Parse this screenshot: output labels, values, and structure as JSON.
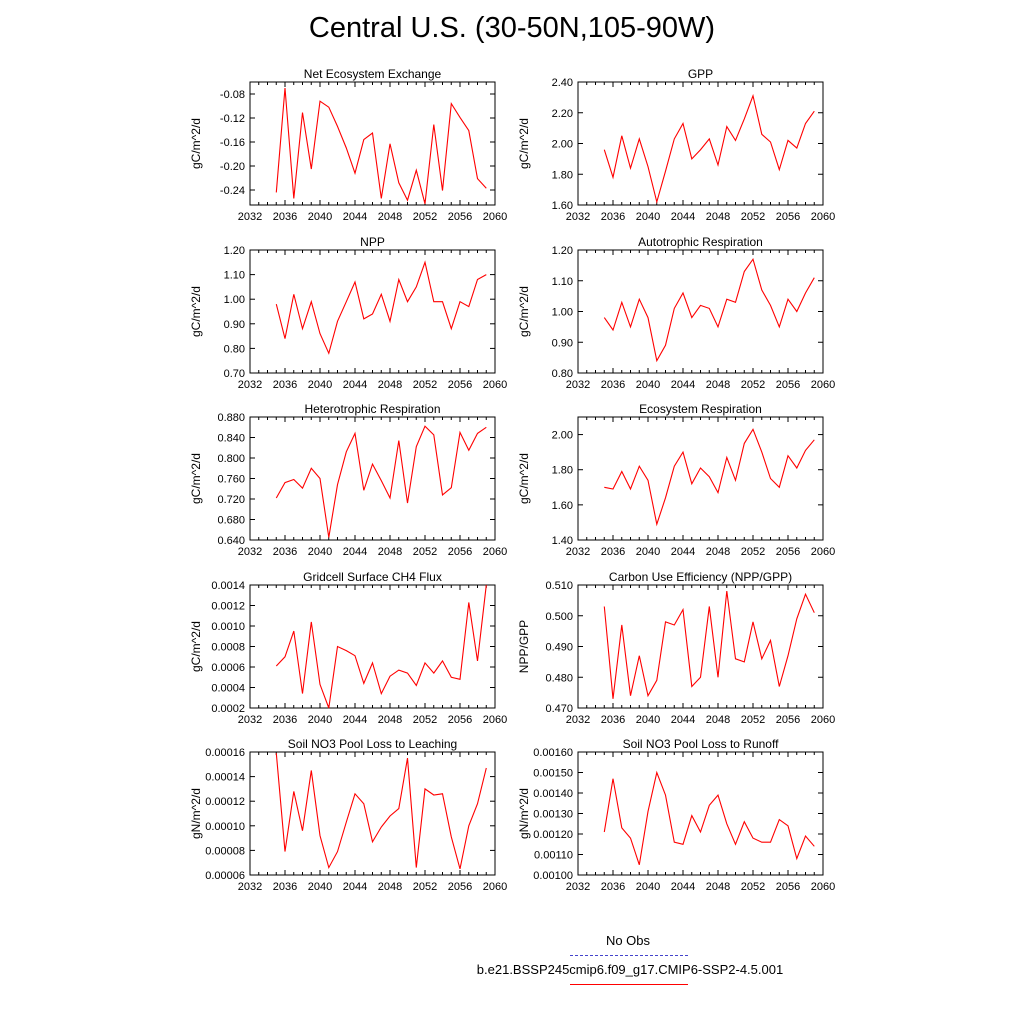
{
  "figure": {
    "title": "Central U.S. (30-50N,105-90W)",
    "obs_color": "#4444cc",
    "model_color": "#ff0000"
  },
  "legend": {
    "obs_label": "No Obs",
    "model_label": "b.e21.BSSP245cmip6.f09_g17.CMIP6-SSP2-4.5.001"
  },
  "chart_data": [
    {
      "type": "line",
      "title": "Net Ecosystem Exchange",
      "ylabel": "gC/m^2/d",
      "xlim": [
        2032,
        2060
      ],
      "xticks": [
        "2032",
        "2036",
        "2040",
        "2044",
        "2048",
        "2052",
        "2056",
        "2060"
      ],
      "ylim": [
        -0.265,
        -0.06
      ],
      "yticks": [
        "-0.08",
        "-0.12",
        "-0.16",
        "-0.20",
        "-0.24"
      ],
      "ytick_values": [
        -0.08,
        -0.12,
        -0.16,
        -0.2,
        -0.24
      ],
      "x": [
        2035,
        2036,
        2037,
        2038,
        2039,
        2040,
        2041,
        2042,
        2043,
        2044,
        2045,
        2046,
        2047,
        2048,
        2049,
        2050,
        2051,
        2052,
        2053,
        2054,
        2055,
        2056,
        2057,
        2058,
        2059
      ],
      "series": [
        {
          "values": [
            -0.244,
            -0.07,
            -0.254,
            -0.111,
            -0.205,
            -0.092,
            -0.102,
            -0.134,
            -0.17,
            -0.212,
            -0.156,
            -0.145,
            -0.254,
            -0.163,
            -0.228,
            -0.257,
            -0.207,
            -0.263,
            -0.131,
            -0.241,
            -0.096,
            -0.119,
            -0.141,
            -0.221,
            -0.237
          ]
        }
      ]
    },
    {
      "type": "line",
      "title": "GPP",
      "ylabel": "gC/m^2/d",
      "xlim": [
        2032,
        2060
      ],
      "xticks": [
        "2032",
        "2036",
        "2040",
        "2044",
        "2048",
        "2052",
        "2056",
        "2060"
      ],
      "ylim": [
        1.6,
        2.4
      ],
      "yticks": [
        "1.60",
        "1.80",
        "2.00",
        "2.20",
        "2.40"
      ],
      "ytick_values": [
        1.6,
        1.8,
        2.0,
        2.2,
        2.4
      ],
      "x": [
        2035,
        2036,
        2037,
        2038,
        2039,
        2040,
        2041,
        2042,
        2043,
        2044,
        2045,
        2046,
        2047,
        2048,
        2049,
        2050,
        2051,
        2052,
        2053,
        2054,
        2055,
        2056,
        2057,
        2058,
        2059
      ],
      "series": [
        {
          "values": [
            1.96,
            1.78,
            2.05,
            1.84,
            2.03,
            1.85,
            1.62,
            1.82,
            2.03,
            2.13,
            1.9,
            1.96,
            2.03,
            1.86,
            2.11,
            2.02,
            2.16,
            2.31,
            2.06,
            2.01,
            1.83,
            2.02,
            1.97,
            2.13,
            2.21
          ]
        }
      ]
    },
    {
      "type": "line",
      "title": "NPP",
      "ylabel": "gC/m^2/d",
      "xlim": [
        2032,
        2060
      ],
      "xticks": [
        "2032",
        "2036",
        "2040",
        "2044",
        "2048",
        "2052",
        "2056",
        "2060"
      ],
      "ylim": [
        0.7,
        1.2
      ],
      "yticks": [
        "0.70",
        "0.80",
        "0.90",
        "1.00",
        "1.10",
        "1.20"
      ],
      "ytick_values": [
        0.7,
        0.8,
        0.9,
        1.0,
        1.1,
        1.2
      ],
      "x": [
        2035,
        2036,
        2037,
        2038,
        2039,
        2040,
        2041,
        2042,
        2043,
        2044,
        2045,
        2046,
        2047,
        2048,
        2049,
        2050,
        2051,
        2052,
        2053,
        2054,
        2055,
        2056,
        2057,
        2058,
        2059
      ],
      "series": [
        {
          "values": [
            0.98,
            0.84,
            1.02,
            0.88,
            0.99,
            0.86,
            0.78,
            0.91,
            0.99,
            1.07,
            0.92,
            0.94,
            1.02,
            0.91,
            1.08,
            0.99,
            1.05,
            1.15,
            0.99,
            0.99,
            0.88,
            0.99,
            0.97,
            1.08,
            1.1
          ]
        }
      ]
    },
    {
      "type": "line",
      "title": "Autotrophic Respiration",
      "ylabel": "gC/m^2/d",
      "xlim": [
        2032,
        2060
      ],
      "xticks": [
        "2032",
        "2036",
        "2040",
        "2044",
        "2048",
        "2052",
        "2056",
        "2060"
      ],
      "ylim": [
        0.8,
        1.2
      ],
      "yticks": [
        "0.80",
        "0.90",
        "1.00",
        "1.10",
        "1.20"
      ],
      "ytick_values": [
        0.8,
        0.9,
        1.0,
        1.1,
        1.2
      ],
      "x": [
        2035,
        2036,
        2037,
        2038,
        2039,
        2040,
        2041,
        2042,
        2043,
        2044,
        2045,
        2046,
        2047,
        2048,
        2049,
        2050,
        2051,
        2052,
        2053,
        2054,
        2055,
        2056,
        2057,
        2058,
        2059
      ],
      "series": [
        {
          "values": [
            0.98,
            0.94,
            1.03,
            0.95,
            1.04,
            0.98,
            0.84,
            0.89,
            1.01,
            1.06,
            0.98,
            1.02,
            1.01,
            0.95,
            1.04,
            1.03,
            1.13,
            1.17,
            1.07,
            1.02,
            0.95,
            1.04,
            1.0,
            1.06,
            1.11
          ]
        }
      ]
    },
    {
      "type": "line",
      "title": "Heterotrophic Respiration",
      "ylabel": "gC/m^2/d",
      "xlim": [
        2032,
        2060
      ],
      "xticks": [
        "2032",
        "2036",
        "2040",
        "2044",
        "2048",
        "2052",
        "2056",
        "2060"
      ],
      "ylim": [
        0.64,
        0.88
      ],
      "yticks": [
        "0.640",
        "0.680",
        "0.720",
        "0.760",
        "0.800",
        "0.840",
        "0.880"
      ],
      "ytick_values": [
        0.64,
        0.68,
        0.72,
        0.76,
        0.8,
        0.84,
        0.88
      ],
      "x": [
        2035,
        2036,
        2037,
        2038,
        2039,
        2040,
        2041,
        2042,
        2043,
        2044,
        2045,
        2046,
        2047,
        2048,
        2049,
        2050,
        2051,
        2052,
        2053,
        2054,
        2055,
        2056,
        2057,
        2058,
        2059
      ],
      "series": [
        {
          "values": [
            0.722,
            0.752,
            0.758,
            0.741,
            0.78,
            0.76,
            0.645,
            0.748,
            0.812,
            0.848,
            0.737,
            0.788,
            0.756,
            0.722,
            0.834,
            0.712,
            0.822,
            0.862,
            0.845,
            0.728,
            0.742,
            0.85,
            0.815,
            0.848,
            0.86
          ]
        }
      ]
    },
    {
      "type": "line",
      "title": "Ecosystem Respiration",
      "ylabel": "gC/m^2/d",
      "xlim": [
        2032,
        2060
      ],
      "xticks": [
        "2032",
        "2036",
        "2040",
        "2044",
        "2048",
        "2052",
        "2056",
        "2060"
      ],
      "ylim": [
        1.4,
        2.1
      ],
      "yticks": [
        "1.40",
        "1.60",
        "1.80",
        "2.00"
      ],
      "ytick_values": [
        1.4,
        1.6,
        1.8,
        2.0
      ],
      "x": [
        2035,
        2036,
        2037,
        2038,
        2039,
        2040,
        2041,
        2042,
        2043,
        2044,
        2045,
        2046,
        2047,
        2048,
        2049,
        2050,
        2051,
        2052,
        2053,
        2054,
        2055,
        2056,
        2057,
        2058,
        2059
      ],
      "series": [
        {
          "values": [
            1.7,
            1.69,
            1.79,
            1.69,
            1.82,
            1.74,
            1.49,
            1.64,
            1.82,
            1.9,
            1.72,
            1.81,
            1.76,
            1.67,
            1.87,
            1.74,
            1.95,
            2.03,
            1.9,
            1.75,
            1.7,
            1.88,
            1.81,
            1.91,
            1.97
          ]
        }
      ]
    },
    {
      "type": "line",
      "title": "Gridcell Surface CH4 Flux",
      "ylabel": "gC/m^2/d",
      "xlim": [
        2032,
        2060
      ],
      "xticks": [
        "2032",
        "2036",
        "2040",
        "2044",
        "2048",
        "2052",
        "2056",
        "2060"
      ],
      "ylim": [
        0.0002,
        0.0014
      ],
      "yticks": [
        "0.0002",
        "0.0004",
        "0.0006",
        "0.0008",
        "0.0010",
        "0.0012",
        "0.0014"
      ],
      "ytick_values": [
        0.0002,
        0.0004,
        0.0006,
        0.0008,
        0.001,
        0.0012,
        0.0014
      ],
      "x": [
        2035,
        2036,
        2037,
        2038,
        2039,
        2040,
        2041,
        2042,
        2043,
        2044,
        2045,
        2046,
        2047,
        2048,
        2049,
        2050,
        2051,
        2052,
        2053,
        2054,
        2055,
        2056,
        2057,
        2058,
        2059
      ],
      "series": [
        {
          "values": [
            0.00061,
            0.0007,
            0.00095,
            0.00034,
            0.00104,
            0.00043,
            0.0002,
            0.0008,
            0.00076,
            0.00071,
            0.00044,
            0.00064,
            0.00034,
            0.00051,
            0.00057,
            0.00054,
            0.00042,
            0.00064,
            0.00054,
            0.00066,
            0.0005,
            0.00048,
            0.00123,
            0.00066,
            0.00141
          ]
        }
      ]
    },
    {
      "type": "line",
      "title": "Carbon Use Efficiency (NPP/GPP)",
      "ylabel": "NPP/GPP",
      "xlim": [
        2032,
        2060
      ],
      "xticks": [
        "2032",
        "2036",
        "2040",
        "2044",
        "2048",
        "2052",
        "2056",
        "2060"
      ],
      "ylim": [
        0.47,
        0.51
      ],
      "yticks": [
        "0.470",
        "0.480",
        "0.490",
        "0.500",
        "0.510"
      ],
      "ytick_values": [
        0.47,
        0.48,
        0.49,
        0.5,
        0.51
      ],
      "x": [
        2035,
        2036,
        2037,
        2038,
        2039,
        2040,
        2041,
        2042,
        2043,
        2044,
        2045,
        2046,
        2047,
        2048,
        2049,
        2050,
        2051,
        2052,
        2053,
        2054,
        2055,
        2056,
        2057,
        2058,
        2059
      ],
      "series": [
        {
          "values": [
            0.503,
            0.473,
            0.497,
            0.474,
            0.487,
            0.474,
            0.479,
            0.498,
            0.497,
            0.502,
            0.477,
            0.48,
            0.503,
            0.48,
            0.508,
            0.486,
            0.485,
            0.498,
            0.486,
            0.492,
            0.477,
            0.487,
            0.499,
            0.507,
            0.501
          ]
        }
      ]
    },
    {
      "type": "line",
      "title": "Soil NO3 Pool Loss to Leaching",
      "ylabel": "gN/m^2/d",
      "xlim": [
        2032,
        2060
      ],
      "xticks": [
        "2032",
        "2036",
        "2040",
        "2044",
        "2048",
        "2052",
        "2056",
        "2060"
      ],
      "ylim": [
        6e-05,
        0.00016
      ],
      "yticks": [
        "0.00006",
        "0.00008",
        "0.00010",
        "0.00012",
        "0.00014",
        "0.00016"
      ],
      "ytick_values": [
        6e-05,
        8e-05,
        0.0001,
        0.00012,
        0.00014,
        0.00016
      ],
      "x": [
        2035,
        2036,
        2037,
        2038,
        2039,
        2040,
        2041,
        2042,
        2043,
        2044,
        2045,
        2046,
        2047,
        2048,
        2049,
        2050,
        2051,
        2052,
        2053,
        2054,
        2055,
        2056,
        2057,
        2058,
        2059
      ],
      "series": [
        {
          "values": [
            0.000159,
            7.9e-05,
            0.000128,
            9.6e-05,
            0.000145,
            9.2e-05,
            6.6e-05,
            7.9e-05,
            0.000103,
            0.000126,
            0.000118,
            8.7e-05,
            9.9e-05,
            0.000108,
            0.000114,
            0.000155,
            6.6e-05,
            0.00013,
            0.000125,
            0.000126,
            9.1e-05,
            6.5e-05,
            0.0001,
            0.000118,
            0.000147
          ]
        }
      ]
    },
    {
      "type": "line",
      "title": "Soil NO3 Pool Loss to Runoff",
      "ylabel": "gN/m^2/d",
      "xlim": [
        2032,
        2060
      ],
      "xticks": [
        "2032",
        "2036",
        "2040",
        "2044",
        "2048",
        "2052",
        "2056",
        "2060"
      ],
      "ylim": [
        0.001,
        0.0016
      ],
      "yticks": [
        "0.00100",
        "0.00110",
        "0.00120",
        "0.00130",
        "0.00140",
        "0.00150",
        "0.00160"
      ],
      "ytick_values": [
        0.001,
        0.0011,
        0.0012,
        0.0013,
        0.0014,
        0.0015,
        0.0016
      ],
      "x": [
        2035,
        2036,
        2037,
        2038,
        2039,
        2040,
        2041,
        2042,
        2043,
        2044,
        2045,
        2046,
        2047,
        2048,
        2049,
        2050,
        2051,
        2052,
        2053,
        2054,
        2055,
        2056,
        2057,
        2058,
        2059
      ],
      "series": [
        {
          "values": [
            0.00121,
            0.00147,
            0.00123,
            0.00118,
            0.00105,
            0.00131,
            0.0015,
            0.00139,
            0.00116,
            0.00115,
            0.00129,
            0.00121,
            0.00134,
            0.00139,
            0.00125,
            0.00115,
            0.00126,
            0.00118,
            0.00116,
            0.00116,
            0.00127,
            0.00124,
            0.00108,
            0.00119,
            0.00114
          ]
        }
      ]
    }
  ]
}
